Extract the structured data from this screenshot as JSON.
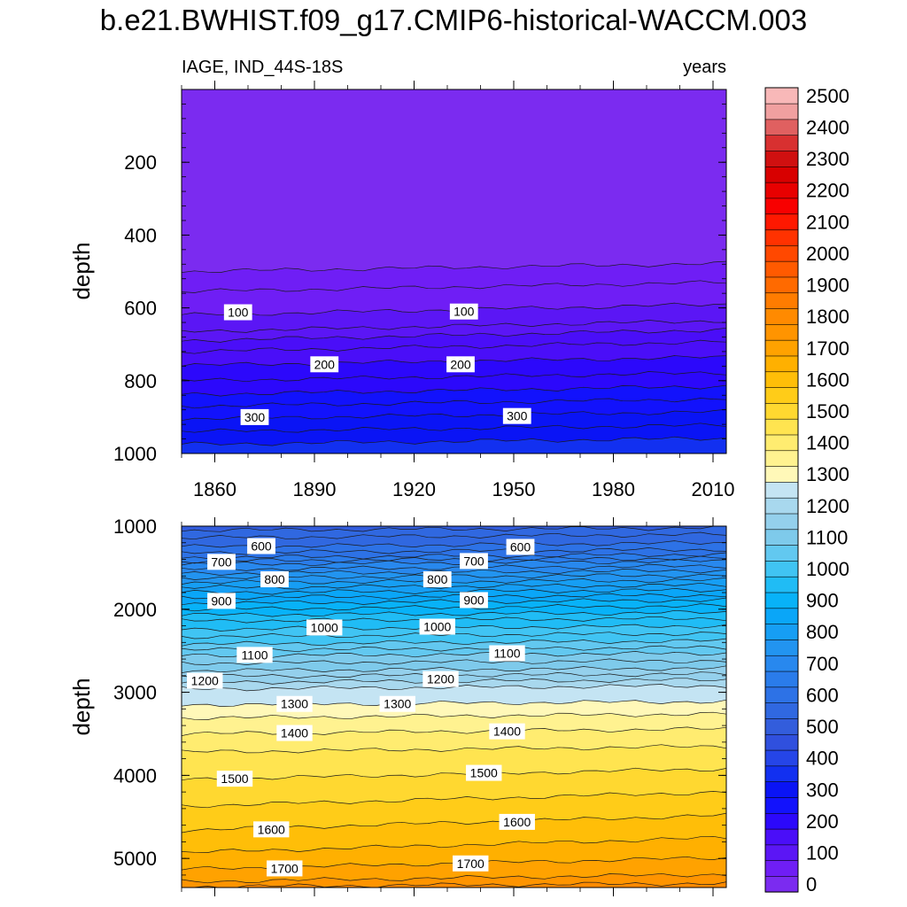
{
  "title": "b.e21.BWHIST.f09_g17.CMIP6-historical-WACCM.003",
  "chart_data": {
    "type": "contour",
    "variable": "IAGE",
    "region": "IND_44S-18S",
    "units": "years",
    "left_label": "IAGE, IND_44S-18S",
    "right_label": "years",
    "xlabel": "",
    "ylabel": "depth",
    "x_range": [
      1850,
      2014
    ],
    "x_ticks": [
      "1860",
      "1890",
      "1920",
      "1950",
      "1980",
      "2010"
    ],
    "grid": false,
    "panels": [
      {
        "name": "upper",
        "depth_range": [
          0,
          1000
        ],
        "y_ticks": [
          "200",
          "400",
          "600",
          "800",
          "1000"
        ],
        "contour_labels": [
          {
            "value": "100",
            "year": 1867,
            "depth": 612
          },
          {
            "value": "100",
            "year": 1935,
            "depth": 610
          },
          {
            "value": "200",
            "year": 1893,
            "depth": 755
          },
          {
            "value": "200",
            "year": 1934,
            "depth": 755
          },
          {
            "value": "300",
            "year": 1872,
            "depth": 900
          },
          {
            "value": "300",
            "year": 1951,
            "depth": 897
          }
        ],
        "contours": [
          {
            "value": 50,
            "depth_start": 500,
            "depth_end": 478
          },
          {
            "value": 75,
            "depth_start": 555,
            "depth_end": 530
          },
          {
            "value": 100,
            "depth_start": 620,
            "depth_end": 590
          },
          {
            "value": 125,
            "depth_start": 665,
            "depth_end": 635
          },
          {
            "value": 150,
            "depth_start": 690,
            "depth_end": 660
          },
          {
            "value": 175,
            "depth_start": 720,
            "depth_end": 693
          },
          {
            "value": 200,
            "depth_start": 758,
            "depth_end": 735
          },
          {
            "value": 225,
            "depth_start": 800,
            "depth_end": 778
          },
          {
            "value": 250,
            "depth_start": 838,
            "depth_end": 815
          },
          {
            "value": 275,
            "depth_start": 870,
            "depth_end": 850
          },
          {
            "value": 300,
            "depth_start": 905,
            "depth_end": 885
          },
          {
            "value": 325,
            "depth_start": 940,
            "depth_end": 922
          },
          {
            "value": 350,
            "depth_start": 975,
            "depth_end": 958
          }
        ]
      },
      {
        "name": "lower",
        "depth_range": [
          1000,
          5350
        ],
        "y_ticks": [
          "1000",
          "2000",
          "3000",
          "4000",
          "5000"
        ],
        "contour_labels": [
          {
            "value": "600",
            "year": 1874,
            "depth": 1240
          },
          {
            "value": "600",
            "year": 1952,
            "depth": 1250
          },
          {
            "value": "700",
            "year": 1862,
            "depth": 1430
          },
          {
            "value": "700",
            "year": 1938,
            "depth": 1420
          },
          {
            "value": "800",
            "year": 1878,
            "depth": 1640
          },
          {
            "value": "800",
            "year": 1927,
            "depth": 1640
          },
          {
            "value": "900",
            "year": 1862,
            "depth": 1900
          },
          {
            "value": "900",
            "year": 1938,
            "depth": 1890
          },
          {
            "value": "1000",
            "year": 1893,
            "depth": 2220
          },
          {
            "value": "1000",
            "year": 1927,
            "depth": 2210
          },
          {
            "value": "1100",
            "year": 1872,
            "depth": 2550
          },
          {
            "value": "1100",
            "year": 1948,
            "depth": 2530
          },
          {
            "value": "1200",
            "year": 1857,
            "depth": 2860
          },
          {
            "value": "1200",
            "year": 1928,
            "depth": 2840
          },
          {
            "value": "1300",
            "year": 1884,
            "depth": 3140
          },
          {
            "value": "1300",
            "year": 1915,
            "depth": 3140
          },
          {
            "value": "1400",
            "year": 1884,
            "depth": 3490
          },
          {
            "value": "1400",
            "year": 1948,
            "depth": 3470
          },
          {
            "value": "1500",
            "year": 1866,
            "depth": 4040
          },
          {
            "value": "1500",
            "year": 1941,
            "depth": 3970
          },
          {
            "value": "1600",
            "year": 1877,
            "depth": 4650
          },
          {
            "value": "1600",
            "year": 1951,
            "depth": 4560
          },
          {
            "value": "1700",
            "year": 1881,
            "depth": 5120
          },
          {
            "value": "1700",
            "year": 1937,
            "depth": 5060
          }
        ],
        "contours": [
          {
            "value": 550,
            "depth_start": 1050,
            "depth_end": 1020
          },
          {
            "value": 575,
            "depth_start": 1140,
            "depth_end": 1100
          },
          {
            "value": 600,
            "depth_start": 1250,
            "depth_end": 1200
          },
          {
            "value": 625,
            "depth_start": 1320,
            "depth_end": 1280
          },
          {
            "value": 650,
            "depth_start": 1380,
            "depth_end": 1340
          },
          {
            "value": 675,
            "depth_start": 1420,
            "depth_end": 1385
          },
          {
            "value": 700,
            "depth_start": 1460,
            "depth_end": 1420
          },
          {
            "value": 725,
            "depth_start": 1520,
            "depth_end": 1480
          },
          {
            "value": 750,
            "depth_start": 1570,
            "depth_end": 1535
          },
          {
            "value": 775,
            "depth_start": 1620,
            "depth_end": 1590
          },
          {
            "value": 800,
            "depth_start": 1680,
            "depth_end": 1650
          },
          {
            "value": 825,
            "depth_start": 1740,
            "depth_end": 1710
          },
          {
            "value": 850,
            "depth_start": 1800,
            "depth_end": 1770
          },
          {
            "value": 875,
            "depth_start": 1860,
            "depth_end": 1830
          },
          {
            "value": 900,
            "depth_start": 1930,
            "depth_end": 1890
          },
          {
            "value": 925,
            "depth_start": 2000,
            "depth_end": 1960
          },
          {
            "value": 950,
            "depth_start": 2070,
            "depth_end": 2040
          },
          {
            "value": 975,
            "depth_start": 2140,
            "depth_end": 2110
          },
          {
            "value": 1000,
            "depth_start": 2240,
            "depth_end": 2200
          },
          {
            "value": 1025,
            "depth_start": 2330,
            "depth_end": 2290
          },
          {
            "value": 1050,
            "depth_start": 2420,
            "depth_end": 2380
          },
          {
            "value": 1075,
            "depth_start": 2490,
            "depth_end": 2460
          },
          {
            "value": 1100,
            "depth_start": 2560,
            "depth_end": 2530
          },
          {
            "value": 1125,
            "depth_start": 2650,
            "depth_end": 2620
          },
          {
            "value": 1150,
            "depth_start": 2740,
            "depth_end": 2710
          },
          {
            "value": 1175,
            "depth_start": 2810,
            "depth_end": 2780
          },
          {
            "value": 1200,
            "depth_start": 2880,
            "depth_end": 2850
          },
          {
            "value": 1250,
            "depth_start": 2960,
            "depth_end": 2920
          },
          {
            "value": 1300,
            "depth_start": 3150,
            "depth_end": 3110
          },
          {
            "value": 1350,
            "depth_start": 3310,
            "depth_end": 3260
          },
          {
            "value": 1400,
            "depth_start": 3500,
            "depth_end": 3440
          },
          {
            "value": 1450,
            "depth_start": 3720,
            "depth_end": 3650
          },
          {
            "value": 1500,
            "depth_start": 4050,
            "depth_end": 3920
          },
          {
            "value": 1550,
            "depth_start": 4370,
            "depth_end": 4200
          },
          {
            "value": 1600,
            "depth_start": 4660,
            "depth_end": 4480
          },
          {
            "value": 1650,
            "depth_start": 4930,
            "depth_end": 4750
          },
          {
            "value": 1700,
            "depth_start": 5130,
            "depth_end": 4990
          },
          {
            "value": 1750,
            "depth_start": 5280,
            "depth_end": 5190
          },
          {
            "value": 1800,
            "depth_start": 5340,
            "depth_end": 5300
          }
        ]
      }
    ],
    "colorbar": {
      "labels": [
        "0",
        "100",
        "200",
        "300",
        "400",
        "500",
        "600",
        "700",
        "800",
        "900",
        "1000",
        "1100",
        "1200",
        "1300",
        "1400",
        "1500",
        "1600",
        "1700",
        "1800",
        "1900",
        "2000",
        "2100",
        "2200",
        "2300",
        "2400",
        "2500"
      ],
      "level_step": 50,
      "colors": [
        "#7b2bf0",
        "#6f1ef5",
        "#5b16f5",
        "#4a0ef8",
        "#2c08fb",
        "#1212fc",
        "#0a14f5",
        "#1230f0",
        "#2545e8",
        "#3050de",
        "#335ddc",
        "#3068e0",
        "#2d72e6",
        "#2a7cea",
        "#2888ee",
        "#2294f0",
        "#169ef4",
        "#0aa6f8",
        "#08b2f8",
        "#20bcf5",
        "#40c4f3",
        "#62c8f0",
        "#7ecaeb",
        "#94d0ec",
        "#a8d8ee",
        "#c4e4f3",
        "#fff8b8",
        "#fff290",
        "#ffec70",
        "#ffe450",
        "#ffd830",
        "#ffcc18",
        "#ffbe08",
        "#ffb000",
        "#ffa200",
        "#ff9400",
        "#ff8a00",
        "#ff7c00",
        "#ff6a00",
        "#ff5a00",
        "#ff4800",
        "#ff3200",
        "#ff1800",
        "#f80000",
        "#e80000",
        "#d80000",
        "#d01010",
        "#d83030",
        "#e06060",
        "#f0a0a0",
        "#f8b8b8"
      ]
    }
  }
}
